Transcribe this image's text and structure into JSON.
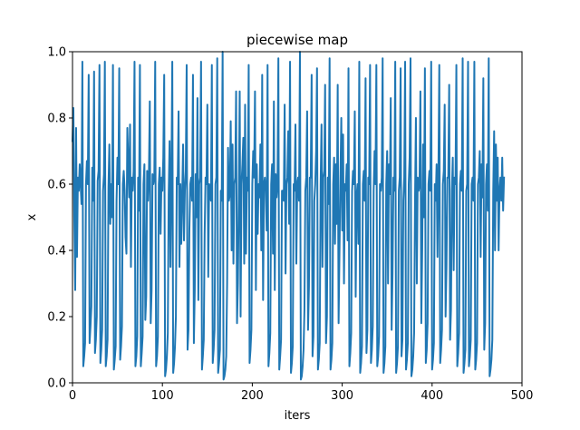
{
  "chart_data": {
    "type": "line",
    "title": "piecewise map",
    "xlabel": "iters",
    "ylabel": "x",
    "xlim": [
      0,
      500
    ],
    "ylim": [
      0,
      1
    ],
    "xticks": [
      0,
      100,
      200,
      300,
      400,
      500
    ],
    "xtick_labels": [
      "0",
      "100",
      "200",
      "300",
      "400",
      "500"
    ],
    "yticks": [
      0,
      0.2,
      0.4,
      0.6,
      0.8,
      1.0
    ],
    "ytick_labels": [
      "0.0",
      "0.2",
      "0.4",
      "0.6",
      "0.8",
      "1.0"
    ],
    "grid": false,
    "line_color": "#1f77b4",
    "series": [
      {
        "x_start": 0,
        "x_step": 1,
        "values": [
          0.73,
          0.83,
          0.5,
          0.28,
          0.77,
          0.38,
          0.62,
          0.58,
          0.66,
          0.6,
          0.54,
          0.97,
          0.05,
          0.08,
          0.12,
          0.6,
          0.67,
          0.6,
          0.93,
          0.12,
          0.17,
          0.23,
          0.65,
          0.55,
          0.94,
          0.09,
          0.13,
          0.2,
          0.61,
          0.64,
          0.96,
          0.06,
          0.1,
          0.16,
          0.58,
          0.63,
          0.97,
          0.05,
          0.08,
          0.13,
          0.59,
          0.72,
          0.48,
          0.6,
          0.5,
          0.96,
          0.04,
          0.07,
          0.11,
          0.55,
          0.68,
          0.6,
          0.95,
          0.07,
          0.11,
          0.17,
          0.6,
          0.64,
          0.58,
          0.44,
          0.39,
          0.77,
          0.67,
          0.56,
          0.78,
          0.35,
          0.62,
          0.58,
          0.64,
          0.97,
          0.05,
          0.08,
          0.14,
          0.62,
          0.52,
          0.96,
          0.05,
          0.09,
          0.14,
          0.6,
          0.66,
          0.19,
          0.26,
          0.64,
          0.55,
          0.63,
          0.85,
          0.18,
          0.28,
          0.63,
          0.6,
          0.62,
          0.97,
          0.05,
          0.08,
          0.14,
          0.6,
          0.65,
          0.45,
          0.62,
          0.58,
          0.68,
          0.93,
          0.02,
          0.04,
          0.08,
          0.15,
          0.57,
          0.73,
          0.35,
          0.62,
          0.97,
          0.03,
          0.06,
          0.11,
          0.2,
          0.62,
          0.6,
          0.82,
          0.35,
          0.6,
          0.42,
          0.56,
          0.72,
          0.43,
          0.58,
          0.64,
          0.96,
          0.1,
          0.16,
          0.46,
          0.6,
          0.62,
          0.55,
          0.93,
          0.12,
          0.28,
          0.63,
          0.5,
          0.86,
          0.25,
          0.6,
          0.62,
          0.97,
          0.04,
          0.08,
          0.13,
          0.45,
          0.62,
          0.6,
          0.84,
          0.32,
          0.6,
          0.58,
          0.55,
          0.96,
          0.06,
          0.1,
          0.16,
          0.6,
          0.62,
          0.98,
          0.03,
          0.06,
          0.1,
          0.58,
          0.55,
          1.0,
          0.01,
          0.02,
          0.04,
          0.08,
          0.3,
          0.71,
          0.55,
          0.57,
          0.79,
          0.4,
          0.72,
          0.36,
          0.6,
          0.62,
          0.88,
          0.18,
          0.3,
          0.56,
          0.88,
          0.2,
          0.6,
          0.66,
          0.74,
          0.36,
          0.84,
          0.39,
          0.62,
          0.58,
          0.96,
          0.06,
          0.1,
          0.16,
          0.6,
          0.7,
          0.62,
          0.88,
          0.28,
          0.66,
          0.45,
          0.6,
          0.56,
          0.72,
          0.4,
          0.93,
          0.25,
          0.6,
          0.62,
          0.58,
          0.46,
          0.96,
          0.05,
          0.09,
          0.15,
          0.6,
          0.66,
          0.39,
          0.85,
          0.28,
          0.63,
          0.56,
          0.6,
          0.98,
          0.04,
          0.08,
          0.13,
          0.58,
          0.58,
          0.55,
          0.84,
          0.33,
          0.6,
          0.62,
          0.76,
          0.48,
          0.97,
          0.03,
          0.06,
          0.11,
          0.6,
          0.58,
          0.78,
          0.36,
          0.6,
          0.62,
          0.55,
          1.0,
          0.01,
          0.02,
          0.05,
          0.1,
          0.22,
          0.58,
          0.62,
          0.82,
          0.16,
          0.29,
          0.62,
          0.62,
          0.93,
          0.08,
          0.14,
          0.55,
          0.6,
          0.7,
          0.95,
          0.04,
          0.07,
          0.12,
          0.6,
          0.78,
          0.35,
          0.62,
          0.64,
          0.9,
          0.12,
          0.2,
          0.62,
          0.54,
          0.98,
          0.04,
          0.07,
          0.12,
          0.6,
          0.68,
          0.42,
          0.66,
          0.48,
          0.9,
          0.18,
          0.4,
          0.62,
          0.8,
          0.46,
          0.75,
          0.3,
          0.6,
          0.58,
          0.66,
          0.43,
          0.95,
          0.05,
          0.09,
          0.15,
          0.58,
          0.64,
          0.6,
          0.82,
          0.26,
          0.56,
          0.6,
          0.42,
          0.97,
          0.03,
          0.06,
          0.11,
          0.6,
          0.64,
          0.55,
          0.92,
          0.09,
          0.16,
          0.62,
          0.6,
          0.96,
          0.06,
          0.1,
          0.17,
          0.58,
          0.7,
          0.6,
          0.96,
          0.05,
          0.08,
          0.14,
          0.6,
          0.58,
          0.62,
          0.98,
          0.03,
          0.06,
          0.11,
          0.6,
          0.7,
          0.3,
          0.66,
          0.57,
          0.86,
          0.16,
          0.33,
          0.62,
          0.58,
          0.97,
          0.03,
          0.06,
          0.11,
          0.58,
          0.62,
          0.95,
          0.08,
          0.13,
          0.55,
          0.62,
          0.97,
          0.04,
          0.07,
          0.12,
          0.6,
          0.68,
          0.98,
          0.02,
          0.04,
          0.08,
          0.15,
          0.55,
          0.8,
          0.3,
          0.62,
          0.58,
          0.6,
          0.88,
          0.18,
          0.4,
          0.72,
          0.5,
          0.95,
          0.06,
          0.1,
          0.18,
          0.6,
          0.64,
          0.58,
          0.97,
          0.04,
          0.07,
          0.12,
          0.6,
          0.55,
          0.66,
          0.38,
          0.62,
          0.96,
          0.06,
          0.1,
          0.16,
          0.6,
          0.64,
          0.84,
          0.2,
          0.35,
          0.62,
          0.62,
          0.9,
          0.13,
          0.22,
          0.58,
          0.68,
          0.34,
          0.62,
          0.6,
          0.96,
          0.05,
          0.09,
          0.15,
          0.6,
          0.64,
          0.58,
          0.98,
          0.03,
          0.06,
          0.1,
          0.58,
          0.6,
          0.97,
          0.05,
          0.08,
          0.13,
          0.6,
          0.62,
          0.55,
          0.97,
          0.04,
          0.07,
          0.12,
          0.6,
          0.62,
          0.7,
          0.38,
          0.66,
          0.56,
          0.92,
          0.1,
          0.18,
          0.6,
          0.66,
          0.52,
          0.98,
          0.02,
          0.04,
          0.07,
          0.13,
          0.58,
          0.76,
          0.4,
          0.72,
          0.55,
          0.68,
          0.4,
          0.58,
          0.62,
          0.55,
          0.68,
          0.52,
          0.62
        ]
      }
    ]
  }
}
